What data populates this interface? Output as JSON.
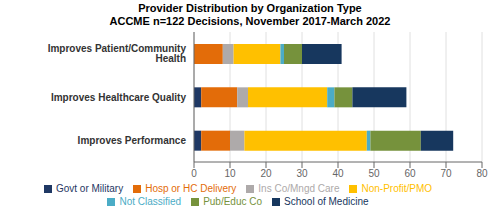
{
  "chart_data": {
    "type": "bar",
    "orientation": "horizontal",
    "stacked": true,
    "title": "Provider Distribution by Organization Type",
    "subtitle": "ACCME n=122 Decisions, November 2017-March 2022",
    "categories": [
      "Improves Performance",
      "Improves Healthcare Quality",
      "Improves Patient/Community Health"
    ],
    "series": [
      {
        "name": "Govt or Military",
        "color": "#1F3864",
        "values": [
          2,
          2,
          0
        ]
      },
      {
        "name": "Hosp or HC Delivery",
        "color": "#E36C09",
        "values": [
          8,
          10,
          8
        ]
      },
      {
        "name": "Ins Co/Mngd Care",
        "color": "#AEAAAA",
        "values": [
          4,
          3,
          3
        ]
      },
      {
        "name": "Non-Profit/PMO",
        "color": "#FFC000",
        "values": [
          34,
          22,
          13
        ]
      },
      {
        "name": "Not Classified",
        "color": "#4BACC6",
        "values": [
          1,
          2,
          1
        ]
      },
      {
        "name": "Pub/Educ Co",
        "color": "#76923C",
        "values": [
          14,
          5,
          5
        ]
      },
      {
        "name": "School of Medicine",
        "color": "#17375E",
        "values": [
          9,
          15,
          11
        ]
      }
    ],
    "xlim": [
      0,
      80
    ],
    "xticks": [
      0,
      10,
      20,
      30,
      40,
      50,
      60,
      70,
      80
    ],
    "grid": true,
    "legend": "bottom"
  }
}
